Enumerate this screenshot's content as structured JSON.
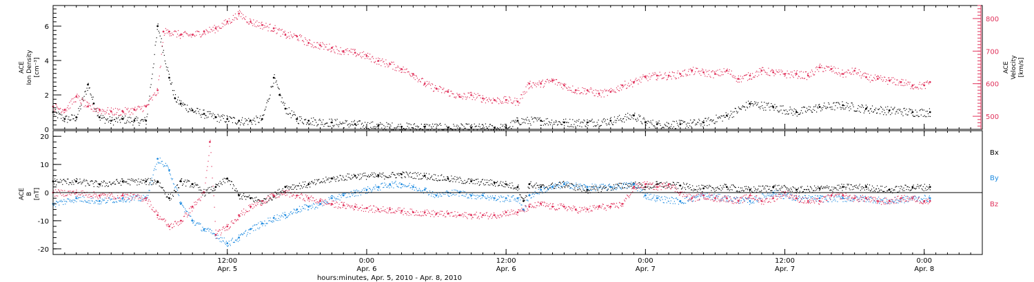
{
  "colors": {
    "axis": "#000000",
    "black": "#000000",
    "red": "#e0305a",
    "blue": "#1c8ae0"
  },
  "xaxis": {
    "range_hours": [
      0,
      80
    ],
    "ticks": [
      {
        "h": 15,
        "time": "12:00",
        "date": "Apr. 5"
      },
      {
        "h": 27,
        "time": "0:00",
        "date": "Apr. 6"
      },
      {
        "h": 39,
        "time": "12:00",
        "date": "Apr. 6"
      },
      {
        "h": 51,
        "time": "0:00",
        "date": "Apr. 7"
      },
      {
        "h": 63,
        "time": "12:00",
        "date": "Apr. 7"
      },
      {
        "h": 75,
        "time": "0:00",
        "date": "Apr. 8"
      }
    ],
    "title": "hours:minutes, Apr.  5, 2010 - Apr.  8, 2010"
  },
  "chart_data": [
    {
      "type": "scatter",
      "panel": "top",
      "ylabel_left": [
        "ACE",
        "Ion Density",
        "[cm⁻³]"
      ],
      "ylabel_right": [
        "ACE",
        "Velocity",
        "[km/s]"
      ],
      "ylim_left": [
        0,
        7.2
      ],
      "ylim_right": [
        460,
        840
      ],
      "yticks_left": [
        0,
        2,
        4,
        6
      ],
      "yticks_right": [
        500,
        600,
        700,
        800
      ],
      "series": [
        {
          "axis": "left",
          "color": "black",
          "x": [
            0,
            1,
            2,
            3,
            3.5,
            4,
            5,
            6,
            7,
            8,
            9,
            10,
            10.5,
            11,
            12,
            13,
            14,
            15,
            16,
            17,
            18,
            19,
            19.5,
            20,
            21,
            22,
            24,
            26,
            28,
            30,
            32,
            34,
            36,
            38,
            39,
            40,
            42,
            44,
            46,
            48,
            50,
            51,
            52,
            54,
            56,
            58,
            60,
            62,
            64,
            66,
            68,
            70,
            72,
            74,
            75.5
          ],
          "y": [
            1.0,
            0.6,
            0.7,
            2.6,
            1.5,
            0.7,
            0.5,
            0.6,
            0.5,
            0.5,
            6.0,
            3.0,
            1.8,
            1.5,
            1.1,
            0.9,
            0.7,
            0.6,
            0.5,
            0.5,
            0.6,
            3.0,
            2.0,
            1.2,
            0.6,
            0.5,
            0.4,
            0.3,
            0.2,
            0.15,
            0.15,
            0.1,
            0.1,
            0.1,
            0.1,
            0.5,
            0.5,
            0.4,
            0.4,
            0.5,
            0.8,
            0.4,
            0.3,
            0.3,
            0.4,
            0.8,
            1.5,
            1.3,
            1.0,
            1.3,
            1.4,
            1.2,
            1.1,
            1.0,
            1.0
          ]
        },
        {
          "axis": "right",
          "color": "red",
          "x": [
            0,
            1,
            2,
            3,
            4,
            5,
            6,
            7,
            8,
            9,
            9.5,
            10,
            11,
            12,
            13,
            14,
            15,
            16,
            17,
            18,
            19,
            20,
            21,
            22,
            23,
            24,
            25,
            26,
            27,
            28,
            29,
            30,
            31,
            32,
            33,
            34,
            35,
            36,
            37,
            38,
            39,
            40,
            41,
            42,
            43,
            44,
            45,
            46,
            47,
            48,
            49,
            50,
            51,
            52,
            53,
            54,
            55,
            56,
            57,
            58,
            59,
            60,
            61,
            62,
            63,
            64,
            65,
            66,
            67,
            68,
            69,
            70,
            71,
            72,
            73,
            74,
            75,
            75.5
          ],
          "y": [
            530,
            520,
            560,
            530,
            520,
            515,
            515,
            520,
            530,
            580,
            760,
            760,
            750,
            750,
            760,
            770,
            790,
            815,
            790,
            780,
            770,
            750,
            745,
            725,
            718,
            710,
            700,
            695,
            685,
            670,
            660,
            645,
            630,
            600,
            585,
            575,
            560,
            565,
            555,
            550,
            550,
            545,
            600,
            600,
            610,
            595,
            580,
            580,
            570,
            575,
            595,
            605,
            620,
            625,
            625,
            630,
            640,
            635,
            630,
            640,
            615,
            625,
            640,
            635,
            630,
            630,
            625,
            650,
            645,
            630,
            640,
            620,
            615,
            610,
            605,
            595,
            595,
            605
          ]
        }
      ]
    },
    {
      "type": "scatter",
      "panel": "bottom",
      "ylabel_left": [
        "ACE",
        "B",
        "[nT]"
      ],
      "ylim": [
        -22,
        22
      ],
      "yticks": [
        -20,
        -10,
        0,
        10,
        20
      ],
      "legend": [
        {
          "label": "Bx",
          "color": "black"
        },
        {
          "label": "By",
          "color": "blue"
        },
        {
          "label": "Bz",
          "color": "red"
        }
      ],
      "series": [
        {
          "name": "Bx",
          "color": "black",
          "x": [
            0,
            2,
            4,
            6,
            8,
            9,
            10,
            11,
            12,
            13,
            14,
            15,
            16,
            17,
            18,
            19,
            20,
            22,
            24,
            26,
            28,
            30,
            32,
            34,
            36,
            38,
            39,
            40,
            40.5,
            41,
            42,
            44,
            46,
            48,
            50,
            51,
            52,
            54,
            56,
            58,
            60,
            62,
            64,
            66,
            68,
            70,
            72,
            74,
            75.5
          ],
          "y": [
            4,
            4,
            3,
            4,
            4,
            4,
            -2,
            4,
            3,
            0,
            2,
            5,
            -1,
            -2,
            -3,
            -1,
            2,
            3,
            5,
            6,
            6,
            6.5,
            6,
            5,
            4,
            3.5,
            3,
            2,
            -3,
            3,
            2,
            3,
            1,
            2,
            3,
            2,
            3,
            2.5,
            1.5,
            2,
            1,
            2,
            1,
            1.5,
            2,
            2,
            1,
            2,
            2
          ]
        },
        {
          "name": "By",
          "color": "blue",
          "x": [
            0,
            2,
            4,
            6,
            8,
            9,
            10,
            11,
            12,
            13,
            14,
            15,
            16,
            17,
            18,
            19,
            20,
            21,
            22,
            23,
            24,
            25,
            26,
            27,
            28,
            29,
            30,
            31,
            32,
            33,
            34,
            35,
            36,
            37,
            38,
            39,
            40,
            40.5,
            41,
            42,
            43,
            44,
            46,
            48,
            50,
            51,
            52,
            54,
            56,
            58,
            60,
            62,
            64,
            66,
            68,
            70,
            72,
            74,
            75.5
          ],
          "y": [
            -4,
            -2,
            -3,
            -2,
            -2,
            12,
            8,
            -4,
            -10,
            -13,
            -15,
            -18,
            -16,
            -13,
            -11,
            -9,
            -8,
            -6,
            -5,
            -4,
            -2,
            -1,
            0,
            1,
            2,
            3,
            3,
            2,
            1,
            -1,
            0,
            0,
            -1,
            -1,
            -2,
            -2,
            -2,
            -6,
            -1,
            1,
            2,
            3,
            2,
            2,
            3,
            -1,
            -2,
            -3,
            -1,
            -2,
            -3,
            0,
            -2,
            -2,
            -2,
            -2,
            -3,
            -2,
            -2
          ]
        },
        {
          "name": "Bz",
          "color": "red",
          "x": [
            0,
            2,
            4,
            6,
            8,
            9,
            10,
            11,
            12,
            13,
            13.5,
            14,
            15,
            16,
            17,
            18,
            19,
            20,
            21,
            22,
            23,
            24,
            25,
            26,
            27,
            28,
            29,
            30,
            31,
            32,
            33,
            34,
            35,
            36,
            37,
            38,
            39,
            40,
            41,
            42,
            43,
            44,
            45,
            46,
            47,
            48,
            49,
            50,
            51,
            52,
            53,
            54,
            55,
            56,
            57,
            58,
            59,
            60,
            61,
            62,
            63,
            64,
            65,
            66,
            67,
            68,
            69,
            70,
            71,
            72,
            73,
            74,
            75,
            75.5
          ],
          "y": [
            0,
            0,
            -1,
            -1,
            -2,
            -8,
            -12,
            -10,
            -5,
            0,
            18,
            -15,
            -12,
            -8,
            -5,
            -3,
            -1,
            0,
            -1,
            -2,
            -3,
            -4,
            -4.5,
            -5,
            -5.5,
            -6,
            -6,
            -6.5,
            -7,
            -7,
            -7.5,
            -7.5,
            -8,
            -8,
            -8,
            -8,
            -7,
            -7,
            -5,
            -4,
            -5,
            -5,
            -6,
            -6,
            -5,
            -5,
            -4,
            2,
            3,
            2,
            3,
            0,
            -2,
            -1,
            -2,
            -2,
            -3,
            -1,
            -3,
            -2,
            0,
            -2,
            -3,
            -3,
            -1,
            -1,
            -2,
            -2,
            -3,
            -3,
            -2,
            -2,
            -3,
            -3
          ]
        }
      ]
    }
  ]
}
